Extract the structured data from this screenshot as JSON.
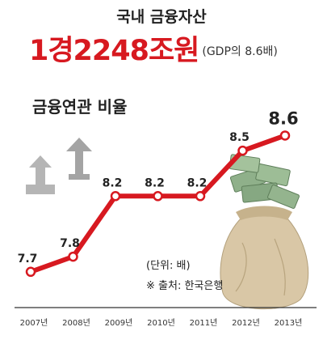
{
  "title": "국내 금융자산",
  "headline": {
    "amount": "1경2248조원",
    "note": "(GDP의 8.6배)"
  },
  "subtitle": "금융연관 비율",
  "unit_note": "(단위: 배)",
  "source_note": "※ 출처: 한국은행",
  "colors": {
    "line": "#d71920",
    "accent": "#d71920",
    "arrow": "#9a9a9a"
  },
  "chart_data": {
    "type": "line",
    "title": "금융연관 비율",
    "categories": [
      "2007년",
      "2008년",
      "2009년",
      "2010년",
      "2011년",
      "2012년",
      "2013년"
    ],
    "series": [
      {
        "values": [
          7.7,
          7.8,
          8.2,
          8.2,
          8.2,
          8.5,
          8.6
        ]
      }
    ],
    "value_labels": [
      "7.7",
      "7.8",
      "8.2",
      "8.2",
      "8.2",
      "8.5",
      "8.6"
    ],
    "ylim": [
      7.56,
      8.72
    ],
    "grid": false,
    "legend": "none"
  }
}
